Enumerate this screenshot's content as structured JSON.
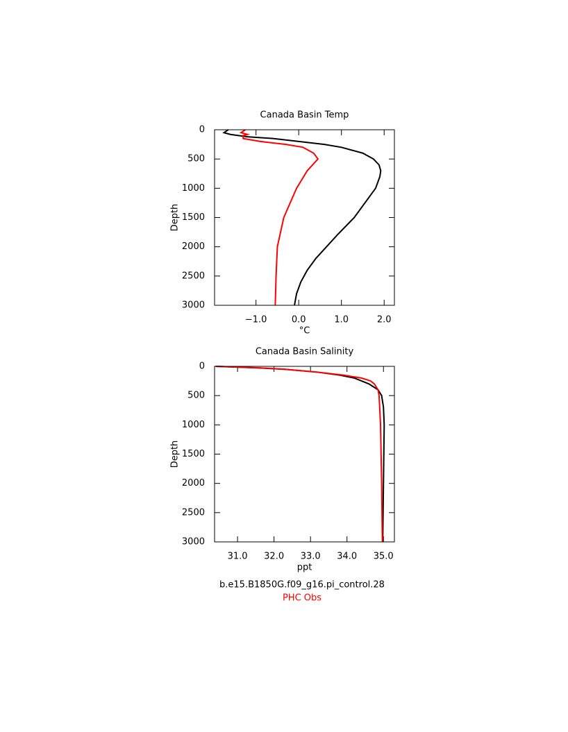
{
  "chart_data": [
    {
      "type": "line",
      "title": "Canada Basin Temp",
      "xlabel": "°C",
      "ylabel": "Depth",
      "xlim": [
        -1.97,
        2.24
      ],
      "ylim": [
        3000,
        0
      ],
      "xticks": [
        {
          "value": -1,
          "label": "−1.0"
        },
        {
          "value": 0,
          "label": "0.0"
        },
        {
          "value": 1,
          "label": "1.0"
        },
        {
          "value": 2,
          "label": "2.0"
        }
      ],
      "yticks": [
        0,
        500,
        1000,
        1500,
        2000,
        2500,
        3000
      ],
      "series": [
        {
          "color": "#000000",
          "depth": [
            0,
            50,
            80,
            120,
            150,
            200,
            250,
            300,
            400,
            500,
            600,
            700,
            800,
            1000,
            1200,
            1500,
            1800,
            2000,
            2200,
            2400,
            2600,
            2800,
            3000
          ],
          "values": [
            -1.65,
            -1.75,
            -1.6,
            -1.2,
            -0.6,
            0.0,
            0.6,
            1.0,
            1.5,
            1.75,
            1.88,
            1.92,
            1.9,
            1.8,
            1.6,
            1.3,
            0.9,
            0.65,
            0.4,
            0.2,
            0.05,
            -0.05,
            -0.1
          ]
        },
        {
          "color": "#ff0000",
          "depth": [
            0,
            50,
            80,
            100,
            150,
            200,
            250,
            300,
            400,
            500,
            700,
            1000,
            1500,
            2000,
            2500,
            3000
          ],
          "values": [
            -1.25,
            -1.35,
            -1.2,
            -1.3,
            -1.3,
            -0.9,
            -0.3,
            0.1,
            0.35,
            0.45,
            0.2,
            -0.05,
            -0.35,
            -0.5,
            -0.53,
            -0.55
          ]
        }
      ]
    },
    {
      "type": "line",
      "title": "Canada Basin Salinity",
      "xlabel": "ppt",
      "ylabel": "Depth",
      "xlim": [
        30.37,
        35.3
      ],
      "ylim": [
        3000,
        0
      ],
      "xticks": [
        {
          "value": 31,
          "label": "31.0"
        },
        {
          "value": 32,
          "label": "32.0"
        },
        {
          "value": 33,
          "label": "33.0"
        },
        {
          "value": 34,
          "label": "34.0"
        },
        {
          "value": 35,
          "label": "35.0"
        }
      ],
      "yticks": [
        0,
        500,
        1000,
        1500,
        2000,
        2500,
        3000
      ],
      "series": [
        {
          "name": "b.e15.B1850G.f09_g16.pi_control.28",
          "color": "#000000",
          "depth": [
            0,
            25,
            50,
            100,
            150,
            200,
            300,
            400,
            500,
            700,
            1000,
            2000,
            3000
          ],
          "values": [
            30.4,
            31.5,
            32.3,
            33.2,
            33.8,
            34.2,
            34.6,
            34.85,
            34.95,
            35.0,
            35.02,
            35.0,
            34.98
          ]
        },
        {
          "name": "PHC Obs",
          "color": "#ff0000",
          "depth": [
            0,
            25,
            50,
            100,
            150,
            200,
            250,
            300,
            400,
            500,
            1000,
            2000,
            3000
          ],
          "values": [
            30.4,
            31.6,
            32.3,
            33.2,
            33.9,
            34.4,
            34.65,
            34.75,
            34.85,
            34.88,
            34.92,
            34.95,
            34.97
          ]
        }
      ]
    }
  ]
}
